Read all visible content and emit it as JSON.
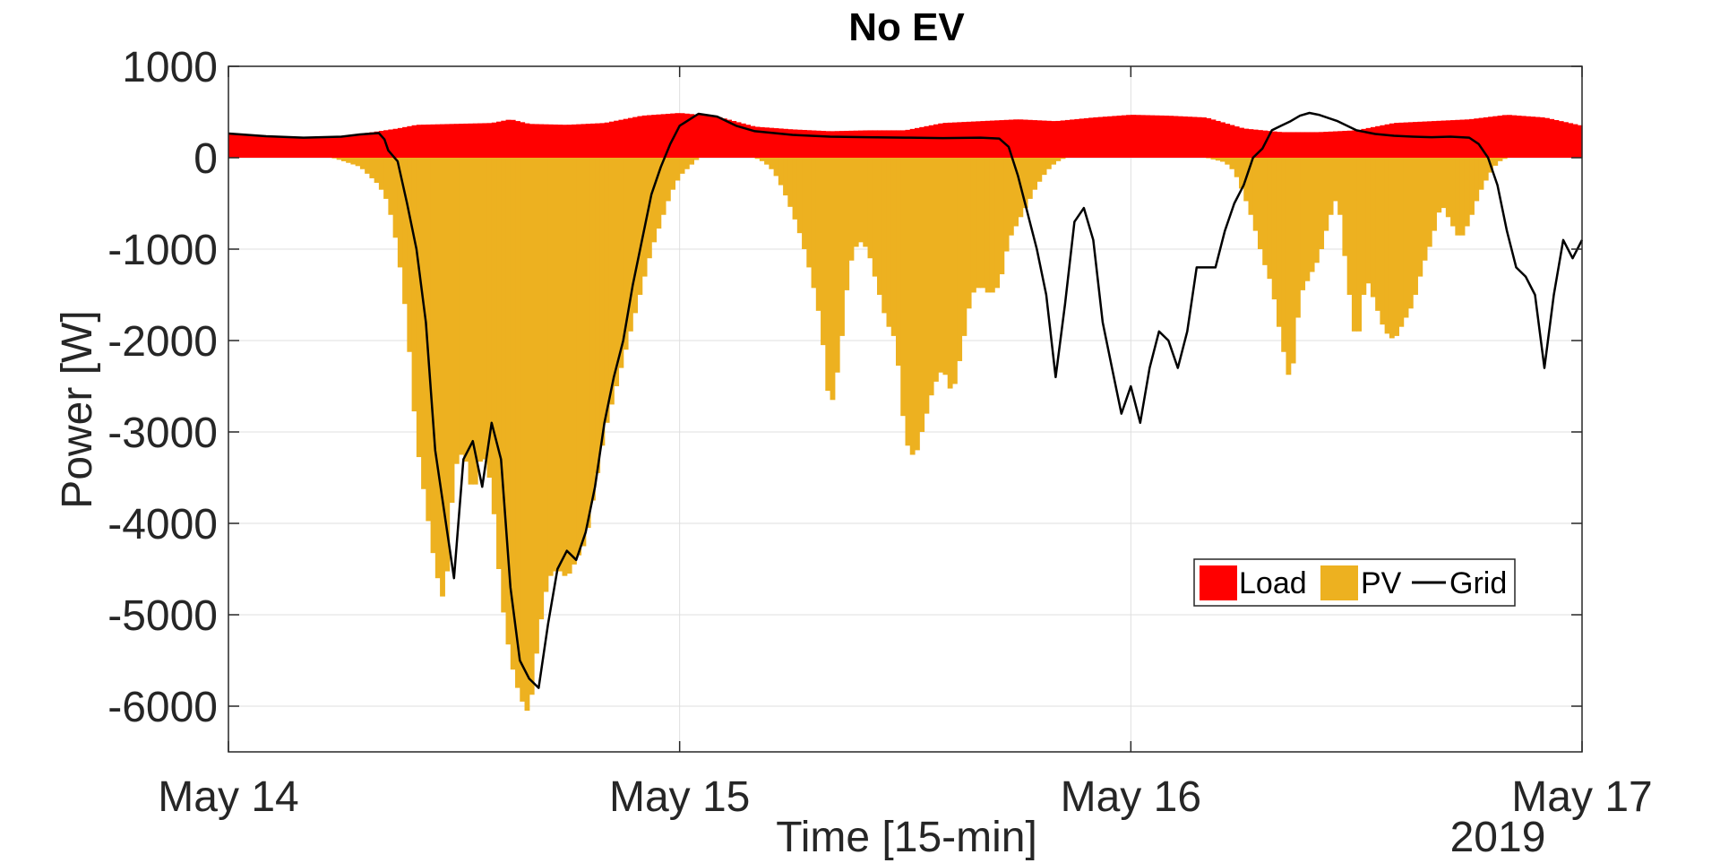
{
  "chart_data": {
    "type": "area",
    "title": "No EV",
    "xlabel": "Time [15-min]",
    "ylabel": "Power [W]",
    "x_axis_secondary_label": "2019",
    "ylim": [
      -6500,
      1000
    ],
    "yticks": [
      1000,
      0,
      -1000,
      -2000,
      -3000,
      -4000,
      -5000,
      -6000
    ],
    "ytick_labels": [
      "1000",
      "0",
      "-1000",
      "-2000",
      "-3000",
      "-4000",
      "-5000",
      "-6000"
    ],
    "xlim_hours": [
      0,
      72
    ],
    "xticks": [
      "May 14",
      "May 15",
      "May 16",
      "May 17"
    ],
    "grid": true,
    "legend_position": "lower-right",
    "legend": [
      "Load",
      "PV",
      "Grid"
    ],
    "series": [
      {
        "name": "Load",
        "style": "bar",
        "color": "#ff0000",
        "points": [
          [
            0,
            265
          ],
          [
            2,
            240
          ],
          [
            4,
            225
          ],
          [
            6,
            235
          ],
          [
            7,
            260
          ],
          [
            8,
            290
          ],
          [
            9,
            320
          ],
          [
            10,
            360
          ],
          [
            12,
            370
          ],
          [
            14,
            380
          ],
          [
            15,
            420
          ],
          [
            16,
            370
          ],
          [
            18,
            360
          ],
          [
            20,
            380
          ],
          [
            22,
            460
          ],
          [
            24,
            490
          ],
          [
            26,
            450
          ],
          [
            28,
            340
          ],
          [
            30,
            310
          ],
          [
            32,
            290
          ],
          [
            34,
            300
          ],
          [
            36,
            300
          ],
          [
            38,
            380
          ],
          [
            40,
            400
          ],
          [
            42,
            420
          ],
          [
            44,
            400
          ],
          [
            46,
            440
          ],
          [
            48,
            470
          ],
          [
            50,
            460
          ],
          [
            52,
            440
          ],
          [
            54,
            320
          ],
          [
            56,
            280
          ],
          [
            58,
            280
          ],
          [
            60,
            300
          ],
          [
            62,
            380
          ],
          [
            64,
            400
          ],
          [
            66,
            420
          ],
          [
            68,
            470
          ],
          [
            70,
            440
          ],
          [
            72,
            350
          ]
        ]
      },
      {
        "name": "PV",
        "style": "bar",
        "color": "#edb120",
        "points": [
          [
            0,
            0
          ],
          [
            5.5,
            0
          ],
          [
            6,
            -30
          ],
          [
            7,
            -100
          ],
          [
            8,
            -300
          ],
          [
            8.5,
            -500
          ],
          [
            9,
            -1000
          ],
          [
            9.5,
            -1800
          ],
          [
            10,
            -3100
          ],
          [
            10.5,
            -3800
          ],
          [
            11,
            -4500
          ],
          [
            11.5,
            -4900
          ],
          [
            12,
            -3400
          ],
          [
            12.5,
            -3200
          ],
          [
            13,
            -3700
          ],
          [
            13.5,
            -3200
          ],
          [
            14,
            -3600
          ],
          [
            14.5,
            -4800
          ],
          [
            15,
            -5500
          ],
          [
            15.5,
            -5900
          ],
          [
            16,
            -6100
          ],
          [
            16.5,
            -5200
          ],
          [
            17,
            -4600
          ],
          [
            17.5,
            -4500
          ],
          [
            18,
            -4600
          ],
          [
            18.5,
            -4400
          ],
          [
            19,
            -4200
          ],
          [
            19.5,
            -3600
          ],
          [
            20,
            -3000
          ],
          [
            20.5,
            -2600
          ],
          [
            21,
            -2200
          ],
          [
            21.5,
            -1800
          ],
          [
            22,
            -1400
          ],
          [
            22.5,
            -1000
          ],
          [
            23,
            -700
          ],
          [
            23.5,
            -400
          ],
          [
            24,
            -200
          ],
          [
            25,
            0
          ],
          [
            28,
            0
          ],
          [
            28.5,
            -50
          ],
          [
            29,
            -150
          ],
          [
            29.5,
            -350
          ],
          [
            30,
            -600
          ],
          [
            30.5,
            -900
          ],
          [
            31,
            -1300
          ],
          [
            31.5,
            -1800
          ],
          [
            32,
            -2800
          ],
          [
            32.5,
            -2200
          ],
          [
            33,
            -1200
          ],
          [
            33.5,
            -900
          ],
          [
            34,
            -1000
          ],
          [
            34.5,
            -1400
          ],
          [
            35,
            -1800
          ],
          [
            35.5,
            -2000
          ],
          [
            36,
            -3100
          ],
          [
            36.5,
            -3300
          ],
          [
            37,
            -2900
          ],
          [
            37.5,
            -2500
          ],
          [
            38,
            -2300
          ],
          [
            38.5,
            -2600
          ],
          [
            39,
            -2100
          ],
          [
            39.5,
            -1500
          ],
          [
            40,
            -1400
          ],
          [
            40.5,
            -1500
          ],
          [
            41,
            -1400
          ],
          [
            41.5,
            -900
          ],
          [
            42,
            -700
          ],
          [
            42.5,
            -500
          ],
          [
            43,
            -300
          ],
          [
            43.5,
            -150
          ],
          [
            44,
            -50
          ],
          [
            44.5,
            0
          ],
          [
            52,
            0
          ],
          [
            53,
            -50
          ],
          [
            53.5,
            -150
          ],
          [
            54,
            -400
          ],
          [
            54.5,
            -700
          ],
          [
            55,
            -1100
          ],
          [
            55.5,
            -1400
          ],
          [
            56,
            -2000
          ],
          [
            56.5,
            -2500
          ],
          [
            57,
            -1500
          ],
          [
            57.5,
            -1300
          ],
          [
            58,
            -1100
          ],
          [
            58.5,
            -700
          ],
          [
            59,
            -400
          ],
          [
            59.5,
            -1300
          ],
          [
            60,
            -2100
          ],
          [
            60.5,
            -1300
          ],
          [
            61,
            -1600
          ],
          [
            61.5,
            -1900
          ],
          [
            62,
            -2000
          ],
          [
            62.5,
            -1800
          ],
          [
            63,
            -1600
          ],
          [
            63.5,
            -1200
          ],
          [
            64,
            -900
          ],
          [
            64.5,
            -500
          ],
          [
            65,
            -700
          ],
          [
            65.5,
            -900
          ],
          [
            66,
            -700
          ],
          [
            66.5,
            -400
          ],
          [
            67,
            -200
          ],
          [
            67.5,
            -50
          ],
          [
            68,
            0
          ],
          [
            72,
            0
          ]
        ]
      },
      {
        "name": "Grid",
        "style": "line",
        "color": "#000000",
        "points": [
          [
            0,
            265
          ],
          [
            2,
            235
          ],
          [
            4,
            220
          ],
          [
            6,
            230
          ],
          [
            7,
            255
          ],
          [
            8,
            270
          ],
          [
            8.3,
            200
          ],
          [
            8.5,
            80
          ],
          [
            9,
            -40
          ],
          [
            9.5,
            -500
          ],
          [
            10,
            -1000
          ],
          [
            10.5,
            -1800
          ],
          [
            11,
            -3200
          ],
          [
            11.5,
            -3900
          ],
          [
            12,
            -4600
          ],
          [
            12.5,
            -3300
          ],
          [
            13,
            -3100
          ],
          [
            13.5,
            -3600
          ],
          [
            14,
            -2900
          ],
          [
            14.5,
            -3300
          ],
          [
            15,
            -4700
          ],
          [
            15.5,
            -5500
          ],
          [
            16,
            -5700
          ],
          [
            16.5,
            -5800
          ],
          [
            17,
            -5100
          ],
          [
            17.5,
            -4500
          ],
          [
            18,
            -4300
          ],
          [
            18.5,
            -4400
          ],
          [
            19,
            -4100
          ],
          [
            19.5,
            -3600
          ],
          [
            20,
            -2900
          ],
          [
            20.5,
            -2400
          ],
          [
            21,
            -2000
          ],
          [
            21.5,
            -1400
          ],
          [
            22,
            -900
          ],
          [
            22.5,
            -400
          ],
          [
            23,
            -100
          ],
          [
            23.5,
            150
          ],
          [
            24,
            350
          ],
          [
            25,
            480
          ],
          [
            26,
            450
          ],
          [
            27,
            350
          ],
          [
            28,
            290
          ],
          [
            30,
            250
          ],
          [
            32,
            230
          ],
          [
            34,
            225
          ],
          [
            36,
            220
          ],
          [
            38,
            215
          ],
          [
            40,
            220
          ],
          [
            41,
            210
          ],
          [
            41.5,
            120
          ],
          [
            42,
            -200
          ],
          [
            42.5,
            -600
          ],
          [
            43,
            -1000
          ],
          [
            43.5,
            -1500
          ],
          [
            44,
            -2400
          ],
          [
            44.5,
            -1600
          ],
          [
            45,
            -700
          ],
          [
            45.5,
            -550
          ],
          [
            46,
            -900
          ],
          [
            46.5,
            -1800
          ],
          [
            47,
            -2300
          ],
          [
            47.5,
            -2800
          ],
          [
            48,
            -2500
          ],
          [
            48.5,
            -2900
          ],
          [
            49,
            -2300
          ],
          [
            49.5,
            -1900
          ],
          [
            50,
            -2000
          ],
          [
            50.5,
            -2300
          ],
          [
            51,
            -1900
          ],
          [
            51.5,
            -1200
          ],
          [
            52,
            -1200
          ],
          [
            52.5,
            -1200
          ],
          [
            53,
            -800
          ],
          [
            53.5,
            -500
          ],
          [
            54,
            -300
          ],
          [
            54.5,
            0
          ],
          [
            55,
            100
          ],
          [
            55.5,
            300
          ],
          [
            56,
            350
          ],
          [
            56.5,
            400
          ],
          [
            57,
            460
          ],
          [
            57.5,
            490
          ],
          [
            58,
            470
          ],
          [
            59,
            400
          ],
          [
            60,
            300
          ],
          [
            61,
            260
          ],
          [
            62,
            240
          ],
          [
            63,
            230
          ],
          [
            64,
            225
          ],
          [
            65,
            230
          ],
          [
            66,
            220
          ],
          [
            66.5,
            150
          ],
          [
            67,
            0
          ],
          [
            67.5,
            -300
          ],
          [
            68,
            -800
          ],
          [
            68.5,
            -1200
          ],
          [
            69,
            -1300
          ],
          [
            69.5,
            -1500
          ],
          [
            70,
            -2300
          ],
          [
            70.5,
            -1500
          ],
          [
            71,
            -900
          ],
          [
            71.5,
            -1100
          ],
          [
            72,
            -900
          ]
        ]
      }
    ]
  }
}
